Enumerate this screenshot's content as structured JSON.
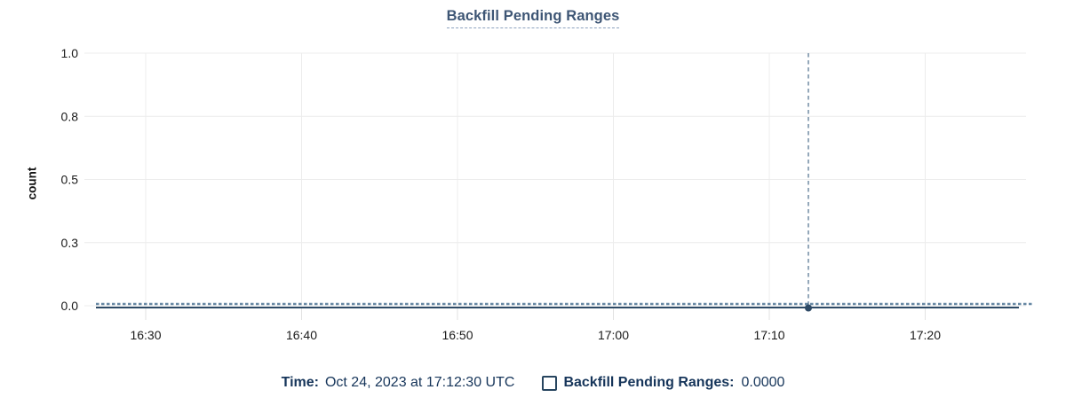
{
  "title": "Backfill Pending Ranges",
  "y_axis_label": "count",
  "colors": {
    "grid": "#ececec",
    "tick_stub": "#e2e2e2",
    "axis_text": "#1a1a1a",
    "title_text": "#3e5675",
    "title_underline": "#8da3bf",
    "legend_text": "#16355a",
    "series_dashed_line": "#6687a3",
    "series_solid_line": "#2e4a66",
    "crosshair": "#5a7894",
    "hover_dot": "#2e4a66"
  },
  "chart_data": {
    "type": "line",
    "title": "Backfill Pending Ranges",
    "xlabel": "",
    "ylabel": "count",
    "x_tick_labels": [
      "16:30",
      "16:40",
      "16:50",
      "17:00",
      "17:10",
      "17:20"
    ],
    "y_tick_labels": [
      "1.0",
      "0.8",
      "0.5",
      "0.3",
      "0.0"
    ],
    "ylim": [
      0.0,
      1.0
    ],
    "grid": true,
    "legend_position": "bottom",
    "series": [
      {
        "name": "Backfill Pending Ranges",
        "x": [
          "16:30",
          "16:40",
          "16:50",
          "17:00",
          "17:10",
          "17:20"
        ],
        "values": [
          0,
          0,
          0,
          0,
          0,
          0
        ],
        "line_style": "dashed",
        "color": "#6687a3"
      }
    ],
    "hover_point": {
      "time": "17:12:30",
      "value": 0.0
    }
  },
  "legend": {
    "time_label": "Time:",
    "time_value": "Oct 24, 2023 at 17:12:30 UTC",
    "series_label": "Backfill Pending Ranges:",
    "series_value": "0.0000",
    "checkbox_checked": false
  }
}
